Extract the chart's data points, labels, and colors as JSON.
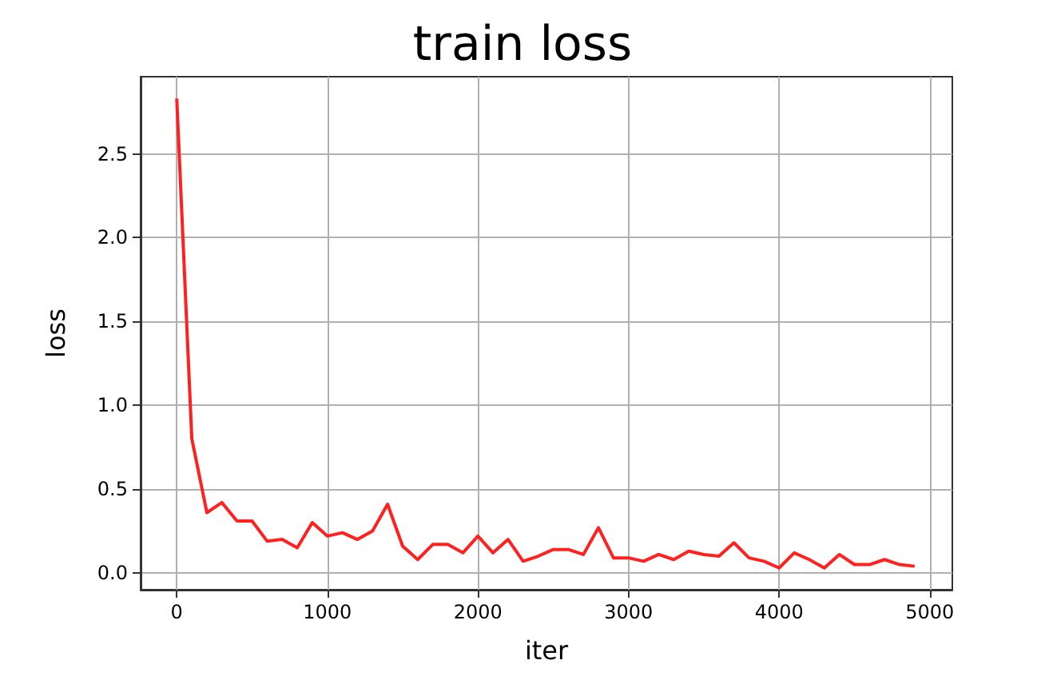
{
  "chart_data": {
    "type": "line",
    "title": "train loss",
    "xlabel": "iter",
    "ylabel": "loss",
    "x": [
      0,
      100,
      200,
      300,
      400,
      500,
      600,
      700,
      800,
      900,
      1000,
      1100,
      1200,
      1300,
      1400,
      1500,
      1600,
      1700,
      1800,
      1900,
      2000,
      2100,
      2200,
      2300,
      2400,
      2500,
      2600,
      2700,
      2800,
      2900,
      3000,
      3100,
      3200,
      3300,
      3400,
      3500,
      3600,
      3700,
      3800,
      3900,
      4000,
      4100,
      4200,
      4300,
      4400,
      4500,
      4600,
      4700,
      4800,
      4900
    ],
    "series": [
      {
        "color": "#ff2020",
        "values": [
          2.83,
          0.8,
          0.36,
          0.42,
          0.31,
          0.31,
          0.19,
          0.2,
          0.15,
          0.3,
          0.22,
          0.24,
          0.2,
          0.25,
          0.41,
          0.16,
          0.08,
          0.17,
          0.17,
          0.12,
          0.22,
          0.12,
          0.2,
          0.07,
          0.1,
          0.14,
          0.14,
          0.11,
          0.27,
          0.09,
          0.09,
          0.07,
          0.11,
          0.08,
          0.13,
          0.11,
          0.1,
          0.18,
          0.09,
          0.07,
          0.03,
          0.12,
          0.08,
          0.03,
          0.11,
          0.05,
          0.05,
          0.08,
          0.05,
          0.04
        ]
      }
    ],
    "xlim": [
      -240,
      5150
    ],
    "xticks": [
      0,
      1000,
      2000,
      3000,
      4000,
      5000
    ],
    "ylim": [
      -0.1,
      2.96
    ],
    "yticks": [
      {
        "value": 0,
        "label": "0.0"
      },
      0.5,
      {
        "value": 1,
        "label": "1.0"
      },
      1.5,
      {
        "value": 2,
        "label": "2.0"
      },
      2.5
    ],
    "grid": true,
    "marker": "none",
    "line_style": "solid"
  }
}
